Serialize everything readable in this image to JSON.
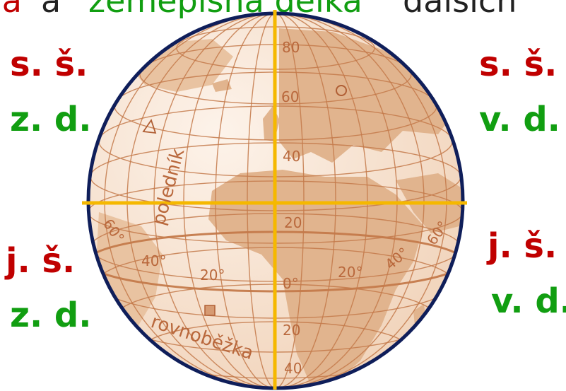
{
  "title": {
    "part1": "la",
    "part2": "a",
    "part3": "zeměpisná délka",
    "part4": "dalších"
  },
  "quadrants": {
    "north_west": {
      "lat": "s. š.",
      "lon": "z. d."
    },
    "north_east": {
      "lat": "s. š.",
      "lon": "v. d."
    },
    "south_west": {
      "lat": "j. š.",
      "lon": "z. d."
    },
    "south_east": {
      "lat": "j. š.",
      "lon": "v. d."
    }
  },
  "globe_labels": {
    "meridian": "poledník",
    "parallel": "rovnoběžka"
  },
  "degree_labels": {
    "lat_80": "80",
    "lat_60": "60",
    "lat_40": "40",
    "lat_20": "20",
    "lat_20_s": "20",
    "lat_40_s": "40",
    "lon_60_w": "60°",
    "lon_40_w": "40°",
    "lon_20_w": "20°",
    "lon_0": "0°",
    "lon_20_e": "20°",
    "lon_40_e": "40°",
    "lon_60_e": "60°"
  },
  "colors": {
    "latitude_text": "#c00000",
    "longitude_text": "#119e11",
    "axis_line": "#f5b800",
    "globe_outline": "#0f1e5a",
    "globe_fill": "#f8e5d4",
    "land_fill": "#e1b48e",
    "grid_line": "#c47a4b"
  }
}
